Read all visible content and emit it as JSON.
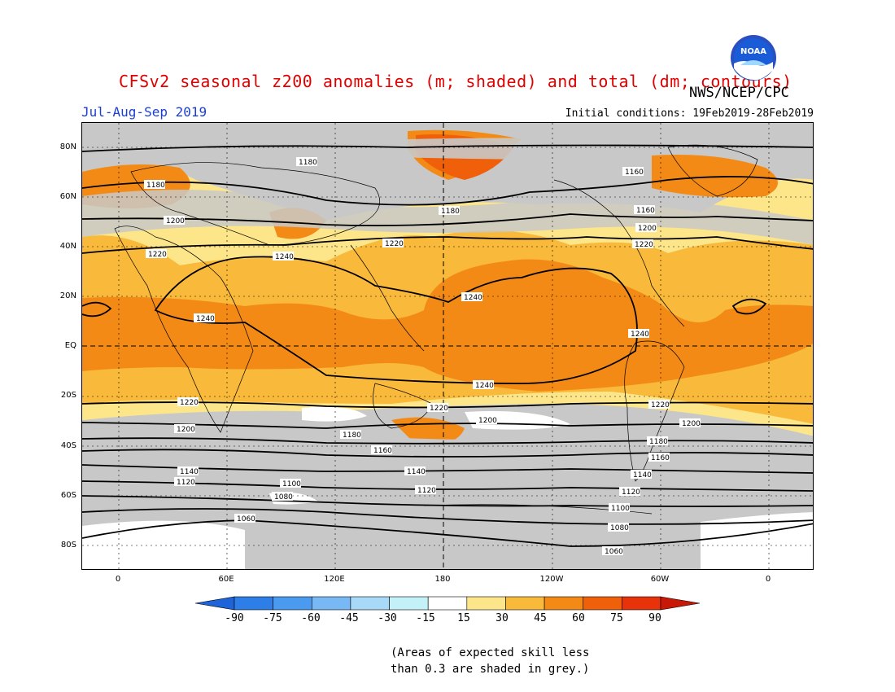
{
  "header": {
    "title": "CFSv2 seasonal z200 anomalies (m; shaded) and total (dm; contours)",
    "season": "Jul-Aug-Sep 2019",
    "agency": "NWS/NCEP/CPC",
    "initial_conditions": "Initial conditions: 19Feb2019-28Feb2019",
    "logo_text": "NOAA"
  },
  "axes": {
    "lat_labels": [
      "80N",
      "60N",
      "40N",
      "20N",
      "EQ",
      "20S",
      "40S",
      "60S",
      "80S"
    ],
    "lon_labels": [
      "0",
      "60E",
      "120E",
      "180",
      "120W",
      "60W",
      "0"
    ]
  },
  "colorbar": {
    "ticks": [
      "-90",
      "-75",
      "-60",
      "-45",
      "-30",
      "-15",
      "15",
      "30",
      "45",
      "60",
      "75",
      "90"
    ],
    "colors": [
      "#1e64d8",
      "#2e7ee8",
      "#4a9af0",
      "#78b8f4",
      "#a8daf8",
      "#c4f0f8",
      "#ffffff",
      "#fde68a",
      "#f9b93a",
      "#f48a16",
      "#f0600a",
      "#e8320a",
      "#c81806"
    ]
  },
  "contour_labels": [
    {
      "text": "1180"
    },
    {
      "text": "1180"
    },
    {
      "text": "1180"
    },
    {
      "text": "1160"
    },
    {
      "text": "1160"
    },
    {
      "text": "1200"
    },
    {
      "text": "1200"
    },
    {
      "text": "1220"
    },
    {
      "text": "1220"
    },
    {
      "text": "1220"
    },
    {
      "text": "1240"
    },
    {
      "text": "1240"
    },
    {
      "text": "1240"
    },
    {
      "text": "1240"
    },
    {
      "text": "1240"
    },
    {
      "text": "1220"
    },
    {
      "text": "1220"
    },
    {
      "text": "1220"
    },
    {
      "text": "1200"
    },
    {
      "text": "1200"
    },
    {
      "text": "1200"
    },
    {
      "text": "1180"
    },
    {
      "text": "1160"
    },
    {
      "text": "1180"
    },
    {
      "text": "1160"
    },
    {
      "text": "1140"
    },
    {
      "text": "1140"
    },
    {
      "text": "1140"
    },
    {
      "text": "1120"
    },
    {
      "text": "1120"
    },
    {
      "text": "1120"
    },
    {
      "text": "1100"
    },
    {
      "text": "1100"
    },
    {
      "text": "1080"
    },
    {
      "text": "1080"
    },
    {
      "text": "1060"
    },
    {
      "text": "1060"
    }
  ],
  "note": {
    "line1": "(Areas of expected skill less",
    "line2": "than 0.3 are shaded in grey.)"
  }
}
